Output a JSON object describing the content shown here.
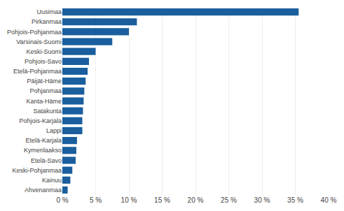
{
  "chart_data": {
    "type": "bar",
    "orientation": "horizontal",
    "categories": [
      "Ahvenanmaa",
      "Kainuu",
      "Keski-Pohjanmaa",
      "Etelä-Savo",
      "Kymenlaakso",
      "Etelä-Karjala",
      "Lappi",
      "Pohjois-Karjala",
      "Satakunta",
      "Kanta-Häme",
      "Pohjanmaa",
      "Päijät-Häme",
      "Etelä-Pohjanmaa",
      "Pohjois-Savo",
      "Keski-Suomi",
      "Varsinais-Suomi",
      "Pohjois-Pohjanmaa",
      "Pirkanmaa",
      "Uusimaa"
    ],
    "values": [
      0.8,
      1.2,
      1.5,
      2.0,
      2.1,
      2.2,
      3.0,
      3.0,
      3.1,
      3.2,
      3.3,
      3.5,
      3.8,
      4.0,
      5.0,
      7.5,
      10.0,
      11.2,
      35.5
    ],
    "color": "#1a5e9e",
    "xlim": [
      0,
      40
    ],
    "xticks": [
      {
        "value": 0,
        "label": "0 %"
      },
      {
        "value": 5,
        "label": "5 %"
      },
      {
        "value": 10,
        "label": "10 %"
      },
      {
        "value": 15,
        "label": "15 %"
      },
      {
        "value": 20,
        "label": "20 %"
      },
      {
        "value": 25,
        "label": "25 %"
      },
      {
        "value": 30,
        "label": "30 %"
      },
      {
        "value": 35,
        "label": "35 %"
      },
      {
        "value": 40,
        "label": "40 %"
      }
    ],
    "grid": true
  }
}
